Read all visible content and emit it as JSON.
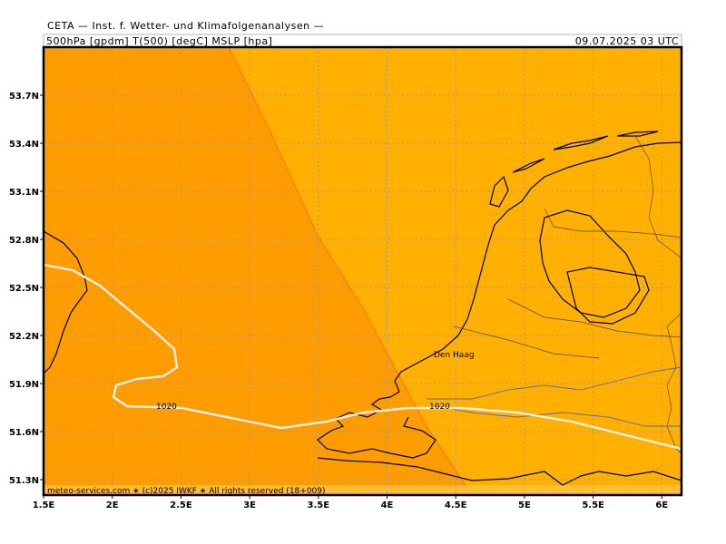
{
  "header": {
    "title": "CETA — Inst. f. Wetter- und Klimafolgenanalysen —",
    "parameters": "500hPa [gpdm] T(500) [degC] MSLP [hpa]",
    "valid_time": "09.07.2025 03 UTC"
  },
  "axes": {
    "x_ticks": [
      "1.5E",
      "2E",
      "2.5E",
      "3E",
      "3.5E",
      "4E",
      "4.5E",
      "5E",
      "5.5E",
      "6E"
    ],
    "y_ticks": [
      "53.7N",
      "53.4N",
      "53.1N",
      "52.8N",
      "52.5N",
      "52.2N",
      "51.9N",
      "51.6N",
      "51.3N"
    ]
  },
  "places": [
    {
      "label": "Den Haag"
    }
  ],
  "isobars": [
    {
      "label": "1020"
    },
    {
      "label": "1020"
    }
  ],
  "footer": {
    "credit": "meteo-services.com ∗ (c)2025 IWKF ∗ All rights reserved (18+009)"
  }
}
